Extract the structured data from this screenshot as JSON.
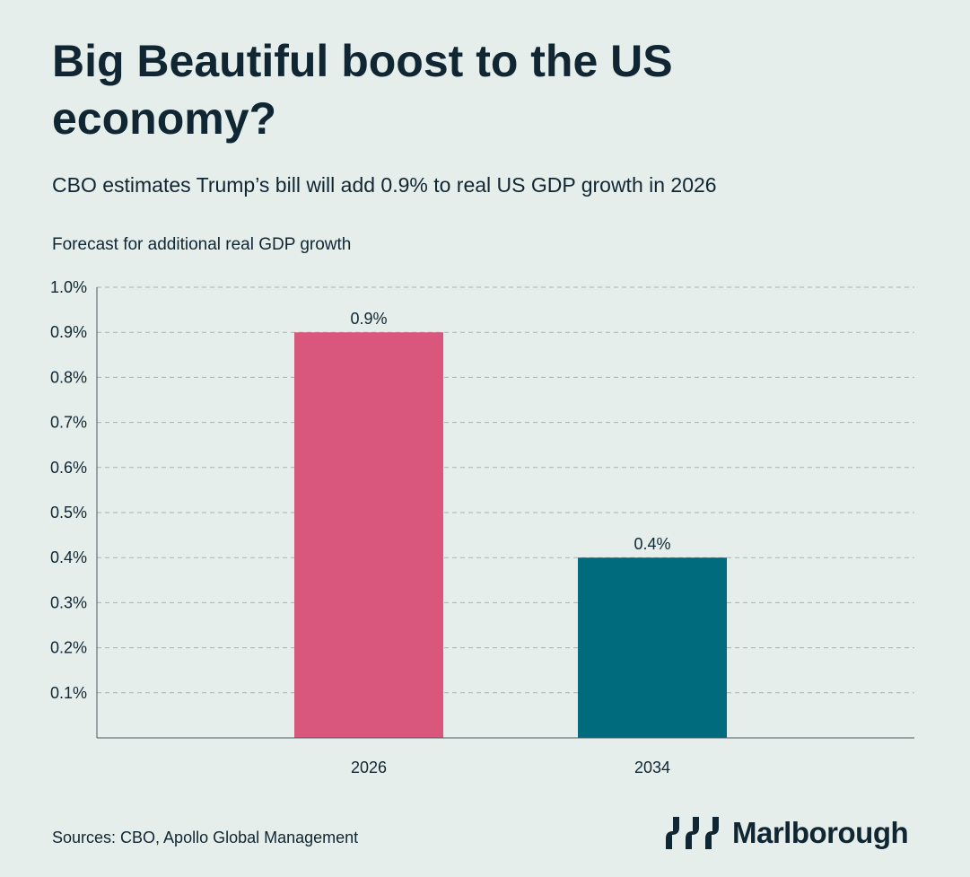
{
  "header": {
    "title": "Big Beautiful boost to the US economy?",
    "subtitle": "CBO estimates Trump’s bill will add 0.9% to real US GDP growth in 2026",
    "axis_caption": "Forecast for additional real GDP growth"
  },
  "chart_data": {
    "type": "bar",
    "title": "Big Beautiful boost to the US economy?",
    "subtitle": "CBO estimates Trump’s bill will add 0.9% to real US GDP growth in 2026",
    "ylabel": "Forecast for additional real GDP growth",
    "xlabel": "",
    "categories": [
      "2026",
      "2034"
    ],
    "values": [
      0.9,
      0.4
    ],
    "value_labels": [
      "0.9%",
      "0.4%"
    ],
    "colors": [
      "#d9577d",
      "#006b7d"
    ],
    "ylim": [
      0,
      1.0
    ],
    "yticks": [
      0.1,
      0.2,
      0.3,
      0.4,
      0.5,
      0.6,
      0.7,
      0.8,
      0.9,
      1.0
    ],
    "ytick_labels": [
      "0.1%",
      "0.2%",
      "0.3%",
      "0.4%",
      "0.5%",
      "0.6%",
      "0.7%",
      "0.8%",
      "0.9%",
      "1.0%"
    ],
    "grid": true,
    "legend": "none"
  },
  "footer": {
    "source": "Sources: CBO, Apollo Global Management",
    "brand": "Marlborough",
    "logo_icon": "marlborough-logo-icon"
  }
}
